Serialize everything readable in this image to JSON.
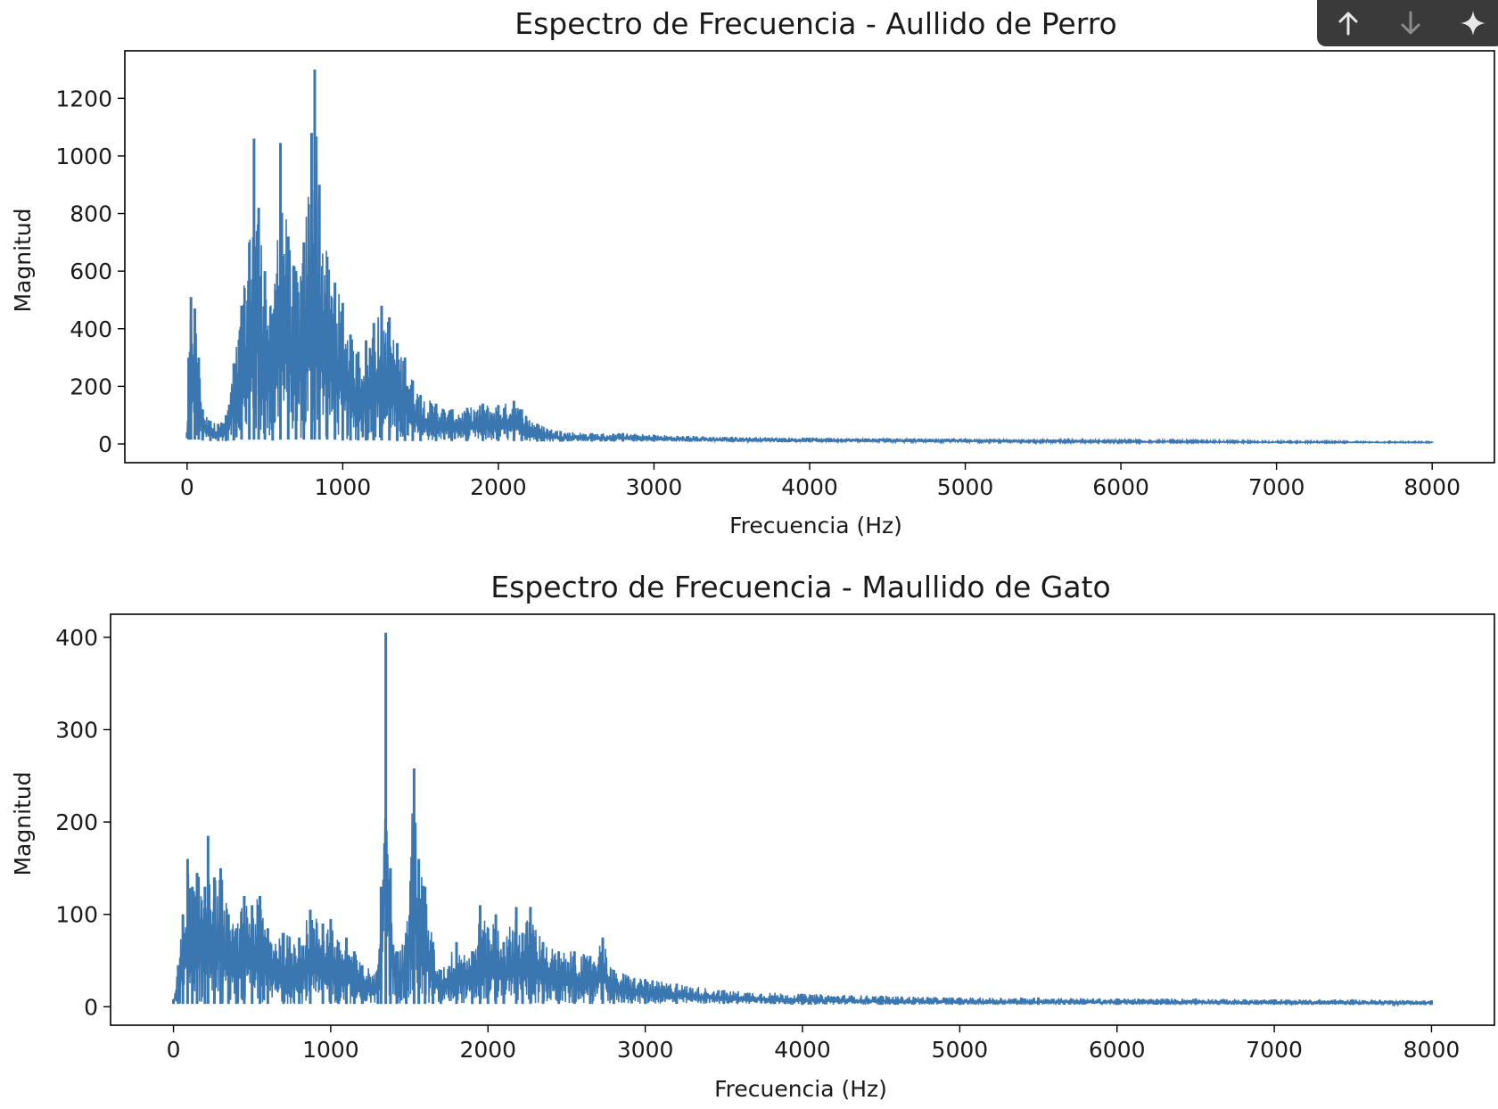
{
  "toolbar": {
    "icons": [
      "arrow-up-icon",
      "arrow-down-icon",
      "sparkle-icon"
    ]
  },
  "chart_data": [
    {
      "type": "line",
      "title": "Espectro de Frecuencia - Aullido de Perro",
      "xlabel": "Frecuencia (Hz)",
      "ylabel": "Magnitud",
      "xlim": [
        -400,
        8400
      ],
      "ylim": [
        -65,
        1365
      ],
      "xticks": [
        0,
        1000,
        2000,
        3000,
        4000,
        5000,
        6000,
        7000,
        8000
      ],
      "xtick_labels": [
        "0",
        "1000",
        "2000",
        "3000",
        "4000",
        "5000",
        "6000",
        "7000",
        "8000"
      ],
      "yticks": [
        0,
        200,
        400,
        600,
        800,
        1000,
        1200
      ],
      "ytick_labels": [
        "0",
        "200",
        "400",
        "600",
        "800",
        "1000",
        "1200"
      ],
      "grid": false,
      "series": [
        {
          "color": "#3a76af",
          "envelope": [
            [
              0,
              20,
              40
            ],
            [
              10,
              15,
              300
            ],
            [
              25,
              15,
              510
            ],
            [
              50,
              15,
              470
            ],
            [
              75,
              15,
              300
            ],
            [
              100,
              12,
              120
            ],
            [
              150,
              10,
              80
            ],
            [
              200,
              10,
              70
            ],
            [
              250,
              10,
              100
            ],
            [
              300,
              12,
              280
            ],
            [
              350,
              15,
              480
            ],
            [
              400,
              15,
              700
            ],
            [
              430,
              15,
              1060
            ],
            [
              460,
              15,
              820
            ],
            [
              500,
              15,
              600
            ],
            [
              550,
              12,
              450
            ],
            [
              600,
              15,
              1045
            ],
            [
              650,
              15,
              720
            ],
            [
              700,
              15,
              600
            ],
            [
              750,
              15,
              700
            ],
            [
              800,
              15,
              1080
            ],
            [
              820,
              15,
              1300
            ],
            [
              850,
              15,
              900
            ],
            [
              900,
              15,
              650
            ],
            [
              950,
              15,
              560
            ],
            [
              1000,
              12,
              490
            ],
            [
              1050,
              12,
              380
            ],
            [
              1100,
              12,
              320
            ],
            [
              1150,
              12,
              360
            ],
            [
              1200,
              12,
              420
            ],
            [
              1250,
              12,
              480
            ],
            [
              1300,
              12,
              440
            ],
            [
              1350,
              10,
              350
            ],
            [
              1400,
              10,
              300
            ],
            [
              1450,
              10,
              220
            ],
            [
              1500,
              10,
              170
            ],
            [
              1600,
              10,
              140
            ],
            [
              1700,
              10,
              120
            ],
            [
              1800,
              10,
              125
            ],
            [
              1900,
              10,
              140
            ],
            [
              2000,
              10,
              135
            ],
            [
              2100,
              10,
              150
            ],
            [
              2150,
              10,
              120
            ],
            [
              2250,
              8,
              70
            ],
            [
              2400,
              8,
              45
            ],
            [
              2600,
              8,
              38
            ],
            [
              2800,
              8,
              38
            ],
            [
              3000,
              8,
              32
            ],
            [
              3500,
              7,
              25
            ],
            [
              4000,
              6,
              22
            ],
            [
              4500,
              6,
              20
            ],
            [
              5000,
              6,
              18
            ],
            [
              5500,
              5,
              16
            ],
            [
              6000,
              5,
              14
            ],
            [
              6500,
              5,
              12
            ],
            [
              7000,
              4,
              10
            ],
            [
              7500,
              4,
              9
            ],
            [
              8000,
              4,
              8
            ]
          ]
        }
      ]
    },
    {
      "type": "line",
      "title": "Espectro de Frecuencia - Maullido de Gato",
      "xlabel": "Frecuencia (Hz)",
      "ylabel": "Magnitud",
      "xlim": [
        -400,
        8400
      ],
      "ylim": [
        -20,
        425
      ],
      "xticks": [
        0,
        1000,
        2000,
        3000,
        4000,
        5000,
        6000,
        7000,
        8000
      ],
      "xtick_labels": [
        "0",
        "1000",
        "2000",
        "3000",
        "4000",
        "5000",
        "6000",
        "7000",
        "8000"
      ],
      "yticks": [
        0,
        100,
        200,
        300,
        400
      ],
      "ytick_labels": [
        "0",
        "100",
        "200",
        "300",
        "400"
      ],
      "grid": false,
      "series": [
        {
          "color": "#3a76af",
          "envelope": [
            [
              0,
              3,
              8
            ],
            [
              30,
              3,
              45
            ],
            [
              60,
              3,
              100
            ],
            [
              90,
              3,
              160
            ],
            [
              120,
              3,
              130
            ],
            [
              150,
              3,
              145
            ],
            [
              200,
              3,
              130
            ],
            [
              220,
              3,
              185
            ],
            [
              260,
              3,
              140
            ],
            [
              300,
              3,
              150
            ],
            [
              350,
              3,
              100
            ],
            [
              400,
              3,
              85
            ],
            [
              450,
              3,
              120
            ],
            [
              500,
              3,
              110
            ],
            [
              550,
              3,
              120
            ],
            [
              600,
              3,
              85
            ],
            [
              700,
              3,
              80
            ],
            [
              800,
              3,
              75
            ],
            [
              870,
              3,
              105
            ],
            [
              950,
              3,
              90
            ],
            [
              1000,
              3,
              95
            ],
            [
              1050,
              3,
              70
            ],
            [
              1100,
              3,
              75
            ],
            [
              1150,
              3,
              60
            ],
            [
              1200,
              3,
              45
            ],
            [
              1300,
              3,
              40
            ],
            [
              1320,
              3,
              130
            ],
            [
              1350,
              3,
              405
            ],
            [
              1380,
              3,
              150
            ],
            [
              1420,
              3,
              60
            ],
            [
              1480,
              3,
              80
            ],
            [
              1530,
              3,
              258
            ],
            [
              1560,
              3,
              160
            ],
            [
              1600,
              3,
              130
            ],
            [
              1650,
              3,
              70
            ],
            [
              1700,
              3,
              40
            ],
            [
              1800,
              3,
              70
            ],
            [
              1900,
              3,
              60
            ],
            [
              1950,
              3,
              110
            ],
            [
              2000,
              3,
              85
            ],
            [
              2050,
              3,
              100
            ],
            [
              2100,
              3,
              70
            ],
            [
              2180,
              3,
              108
            ],
            [
              2220,
              3,
              80
            ],
            [
              2270,
              3,
              108
            ],
            [
              2350,
              3,
              70
            ],
            [
              2450,
              3,
              60
            ],
            [
              2550,
              3,
              60
            ],
            [
              2650,
              3,
              55
            ],
            [
              2730,
              3,
              75
            ],
            [
              2800,
              3,
              40
            ],
            [
              3000,
              3,
              30
            ],
            [
              3200,
              3,
              25
            ],
            [
              3500,
              3,
              18
            ],
            [
              4000,
              2,
              14
            ],
            [
              4500,
              2,
              12
            ],
            [
              5000,
              2,
              10
            ],
            [
              5500,
              2,
              10
            ],
            [
              6000,
              2,
              9
            ],
            [
              6500,
              2,
              9
            ],
            [
              7000,
              2,
              8
            ],
            [
              7500,
              2,
              8
            ],
            [
              8000,
              2,
              7
            ]
          ]
        }
      ]
    }
  ]
}
